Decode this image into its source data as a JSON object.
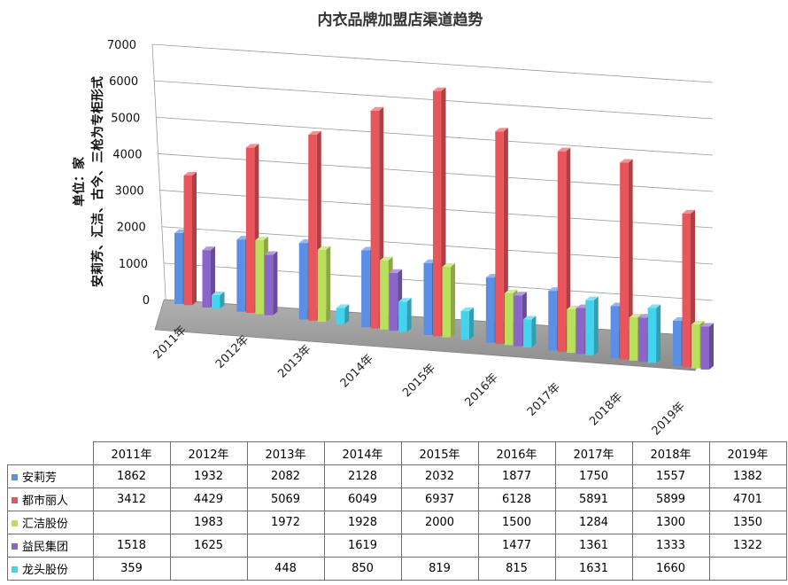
{
  "chart_data": {
    "type": "bar",
    "title": "内衣品牌加盟店渠道趋势",
    "ylabel_line1": "单位：家",
    "ylabel_line2": "安莉芳、汇洁、古今、三枪为专柜形式",
    "ylim": [
      0,
      7000
    ],
    "yticks": [
      0,
      1000,
      2000,
      3000,
      4000,
      5000,
      6000,
      7000
    ],
    "categories": [
      "2011年",
      "2012年",
      "2013年",
      "2014年",
      "2015年",
      "2016年",
      "2017年",
      "2018年",
      "2019年"
    ],
    "series": [
      {
        "name": "安莉芳",
        "color": "#5b8fe6",
        "values": [
          1862,
          1932,
          2082,
          2128,
          2032,
          1877,
          1750,
          1557,
          1382
        ]
      },
      {
        "name": "都市丽人",
        "color": "#e8555a",
        "values": [
          3412,
          4429,
          5069,
          6049,
          6937,
          6128,
          5891,
          5899,
          4701
        ]
      },
      {
        "name": "汇洁股份",
        "color": "#b9e05c",
        "values": [
          null,
          1983,
          1972,
          1928,
          2000,
          1500,
          1284,
          1300,
          1350
        ]
      },
      {
        "name": "益民集团",
        "color": "#8b65c9",
        "values": [
          1518,
          1625,
          null,
          1619,
          null,
          1477,
          1361,
          1333,
          1322
        ]
      },
      {
        "name": "龙头股份",
        "color": "#43d3ec",
        "values": [
          359,
          null,
          448,
          850,
          819,
          815,
          1631,
          1660,
          null
        ]
      }
    ]
  }
}
